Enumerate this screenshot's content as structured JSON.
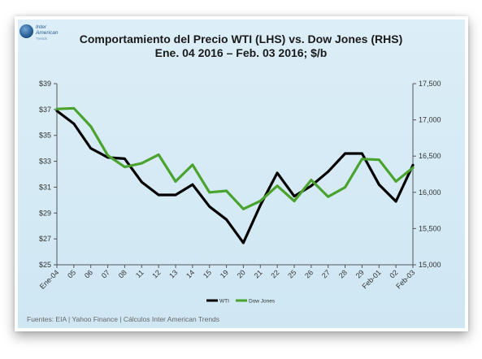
{
  "logo": {
    "name_line1": "Inter",
    "name_line2": "American",
    "sub": "Trends"
  },
  "chart_data": {
    "type": "line",
    "title_line1": "Comportamiento del Precio WTI (LHS) vs. Dow Jones (RHS)",
    "title_line2": "Ene. 04 2016 – Feb. 03 2016; $/b",
    "categories": [
      "Ene-04",
      "05",
      "06",
      "07",
      "08",
      "11",
      "12",
      "13",
      "14",
      "15",
      "19",
      "20",
      "21",
      "22",
      "25",
      "26",
      "27",
      "28",
      "29",
      "Feb-01",
      "02",
      "Feb-03"
    ],
    "y_left": {
      "min": 25,
      "max": 39,
      "ticks": [
        25,
        27,
        29,
        31,
        33,
        35,
        37,
        39
      ],
      "tick_labels": [
        "$25",
        "$27",
        "$29",
        "$31",
        "$33",
        "$35",
        "$37",
        "$39"
      ]
    },
    "y_right": {
      "min": 15000,
      "max": 17500,
      "ticks": [
        15000,
        15500,
        16000,
        16500,
        17000,
        17500
      ],
      "tick_labels": [
        "15,000",
        "15,500",
        "16,000",
        "16,500",
        "17,000",
        "17,500"
      ]
    },
    "series": [
      {
        "name": "WTI",
        "axis": "left",
        "color": "#000000",
        "values": [
          36.9,
          35.9,
          34.0,
          33.3,
          33.2,
          31.4,
          30.4,
          30.4,
          31.2,
          29.5,
          28.5,
          26.7,
          29.6,
          32.1,
          30.3,
          31.1,
          32.2,
          33.6,
          33.6,
          31.2,
          29.9,
          32.7
        ]
      },
      {
        "name": "Dow Jones",
        "axis": "right",
        "color": "#4aa32e",
        "values": [
          17150,
          17160,
          16910,
          16510,
          16350,
          16400,
          16520,
          16150,
          16380,
          16000,
          16020,
          15770,
          15880,
          16090,
          15880,
          16170,
          15940,
          16070,
          16460,
          16450,
          16150,
          16340
        ]
      }
    ],
    "legend_position": "bottom",
    "grid": false
  },
  "source_note": "Fuentes: EIA | Yahoo Finance | Cálculos Inter American Trends"
}
